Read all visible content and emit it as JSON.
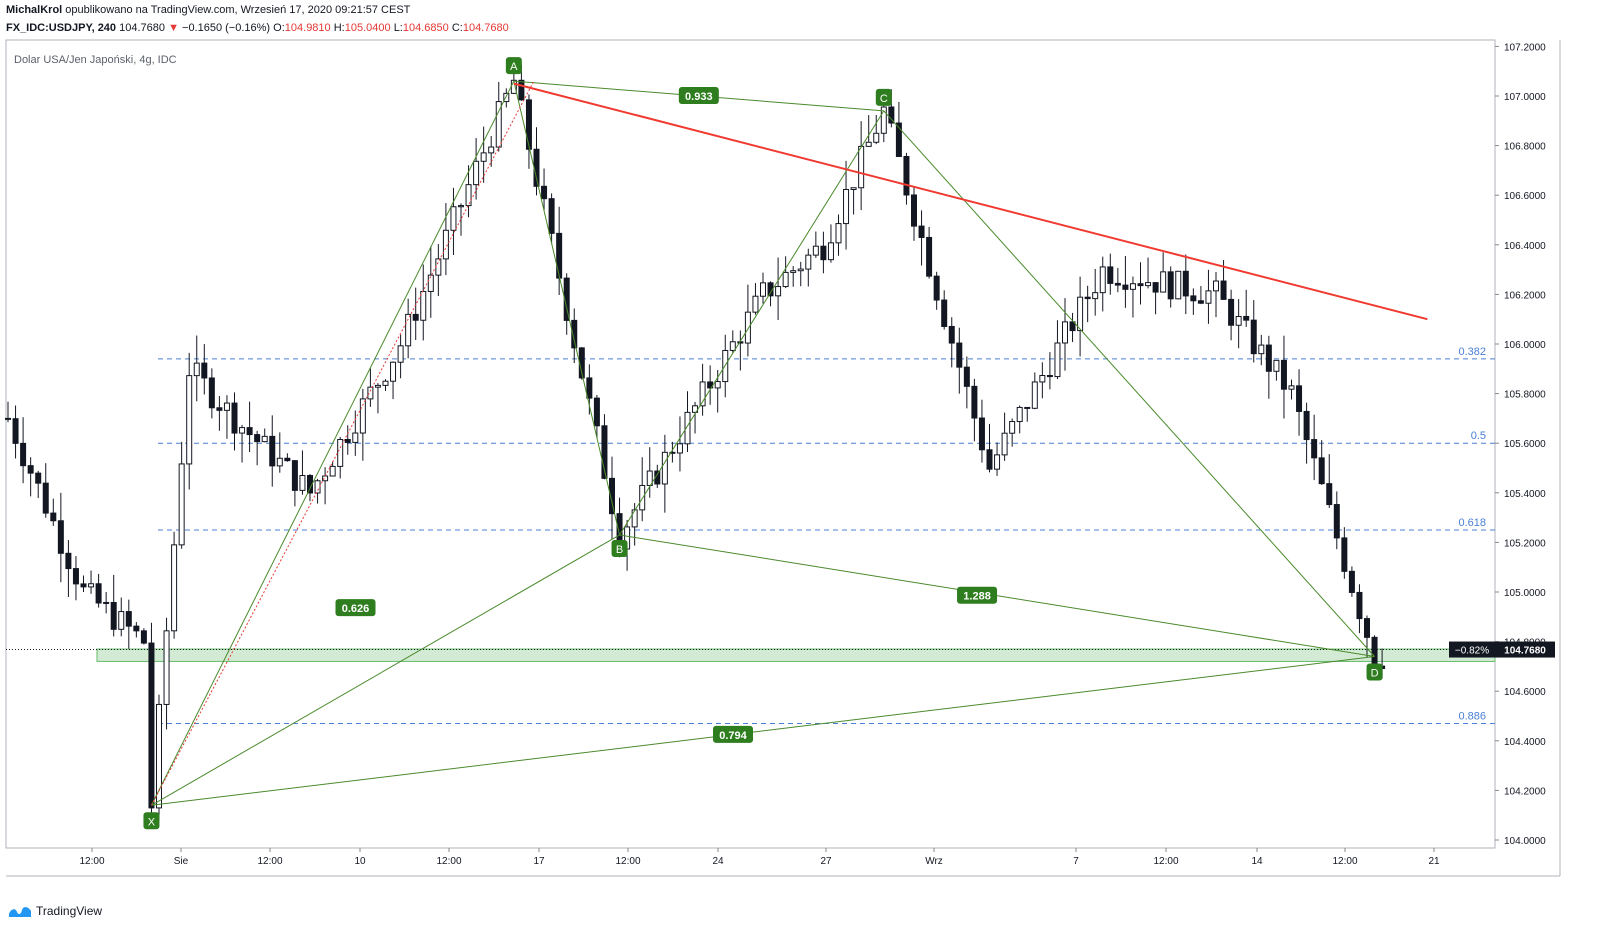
{
  "header": {
    "author": "MichalKrol",
    "published_text": "opublikowano na TradingView.com, Wrzesień 17, 2020 09:21:57 CEST",
    "symbol_label": "FX_IDC:USDJPY, 240",
    "last_price": "104.7680",
    "change": "−0.1650 (−0.16%)",
    "o_label": "O:",
    "o_value": "104.9810",
    "h_label": "H:",
    "h_value": "105.0400",
    "l_label": "L:",
    "l_value": "104.6850",
    "c_label": "C:",
    "c_value": "104.7680",
    "down_arrow": "▼"
  },
  "chart_title": "Dolar USA/Jen Japoński, 4g, IDC",
  "price_tag": {
    "pct": "−0.82%",
    "price": "104.7680"
  },
  "brand": "TradingView",
  "colors": {
    "pattern": "#4a8a2b",
    "trend": "#f0392f",
    "fib": "#4a7fd4",
    "up": "#ffffff",
    "down": "#131722"
  },
  "chart_data": {
    "type": "candlestick",
    "y_range": [
      103.95,
      107.2
    ],
    "y_ticks": [
      104.0,
      104.2,
      104.4,
      104.6,
      104.8,
      105.0,
      105.2,
      105.4,
      105.6,
      105.8,
      106.0,
      106.2,
      106.4,
      106.6,
      106.8,
      107.0,
      107.2
    ],
    "y_tick_labels": [
      "104.0000",
      "104.2000",
      "104.4000",
      "104.6000",
      "104.8000",
      "105.0000",
      "105.2000",
      "105.4000",
      "105.6000",
      "105.8000",
      "106.0000",
      "106.2000",
      "106.4000",
      "106.6000",
      "106.8000",
      "107.0000",
      "107.2000"
    ],
    "x_labels": [
      "12:00",
      "Sie",
      "12:00",
      "10",
      "12:00",
      "17",
      "12:00",
      "24",
      "27",
      "Wrz",
      "7",
      "12:00",
      "14",
      "12:00",
      "21"
    ],
    "harmonic_points": [
      {
        "name": "X",
        "bar": 19,
        "price": 104.14
      },
      {
        "name": "A",
        "bar": 67,
        "price": 107.06
      },
      {
        "name": "B",
        "bar": 81,
        "price": 105.23
      },
      {
        "name": "C",
        "bar": 116,
        "price": 106.94
      },
      {
        "name": "D",
        "bar": 181,
        "price": 104.74
      }
    ],
    "ratios": [
      {
        "label": "0.933",
        "between": "A-C"
      },
      {
        "label": "0.626",
        "between": "X-B"
      },
      {
        "label": "1.288",
        "between": "B-D"
      },
      {
        "label": "0.794",
        "between": "X-D"
      }
    ],
    "fib_levels": [
      {
        "label": "0.382",
        "price": 105.94
      },
      {
        "label": "0.5",
        "price": 105.6
      },
      {
        "label": "0.618",
        "price": 105.25
      },
      {
        "label": "0.886",
        "price": 104.47
      }
    ],
    "trendline": {
      "from": {
        "bar": 67,
        "price": 107.05
      },
      "to": {
        "bar": 188,
        "price": 106.1
      }
    },
    "zone": {
      "top": 104.77,
      "bottom": 104.72
    },
    "last_price": 104.768
  }
}
